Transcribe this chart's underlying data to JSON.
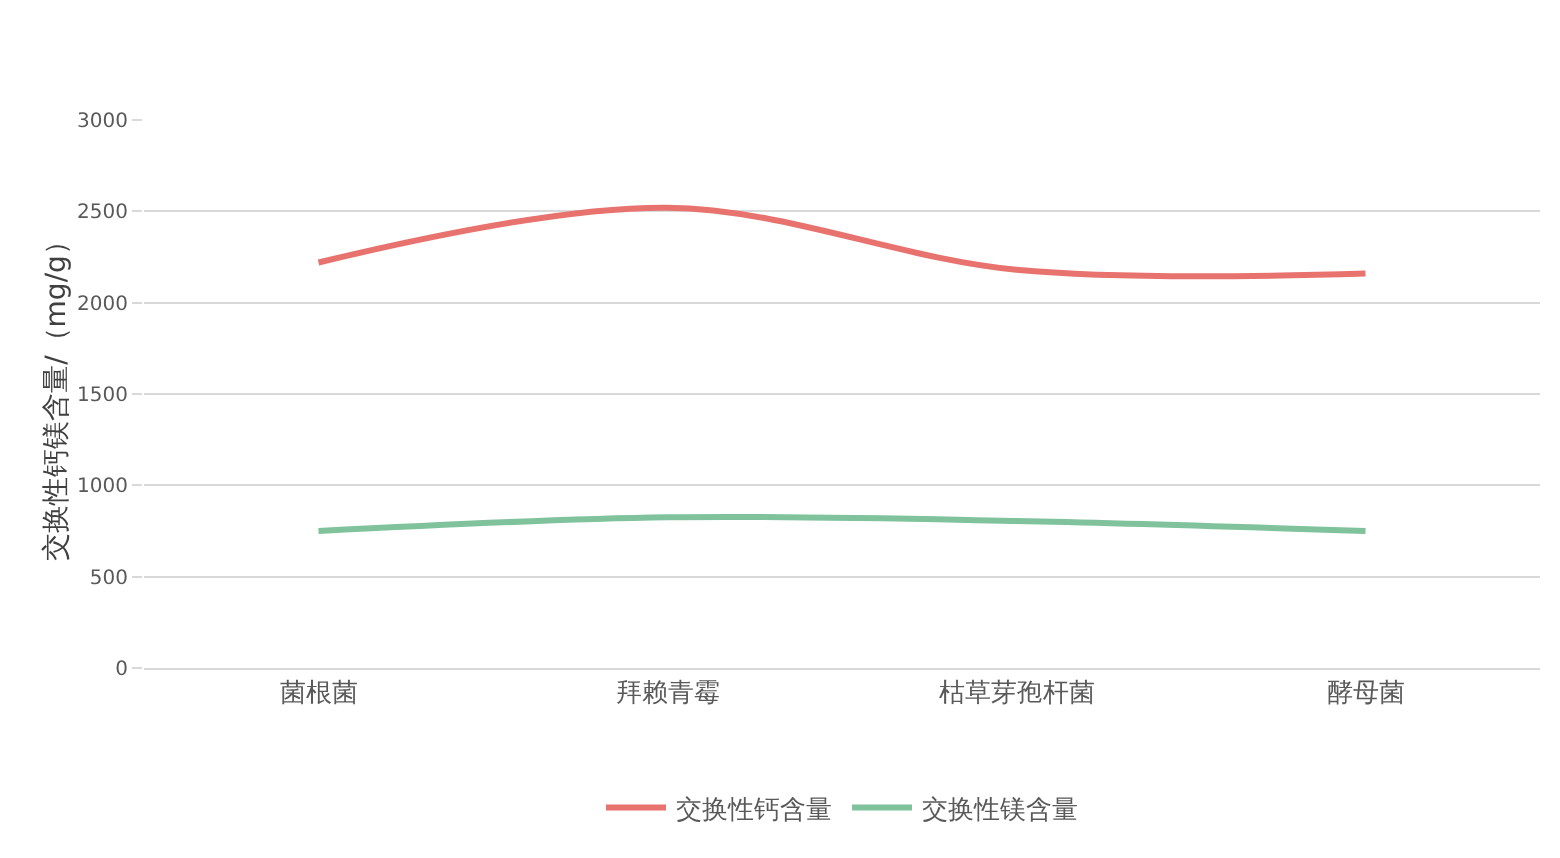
{
  "chart_data": {
    "type": "line",
    "ylabel": "交换性钙镁含量/（mg/g）",
    "categories": [
      "菌根菌",
      "拜赖青霉",
      "枯草芽孢杆菌",
      "酵母菌"
    ],
    "series": [
      {
        "name": "交换性钙含量",
        "color": "#e8726e",
        "values": [
          2220,
          2520,
          2180,
          2160
        ]
      },
      {
        "name": "交换性镁含量",
        "color": "#7fc29b",
        "values": [
          750,
          825,
          805,
          750
        ]
      }
    ],
    "ylim": [
      0,
      3000
    ],
    "yticks": [
      0,
      500,
      1000,
      1500,
      2000,
      2500,
      3000
    ],
    "grid": "y",
    "legend": "bottom",
    "marker": "none",
    "line_style": "solid"
  }
}
